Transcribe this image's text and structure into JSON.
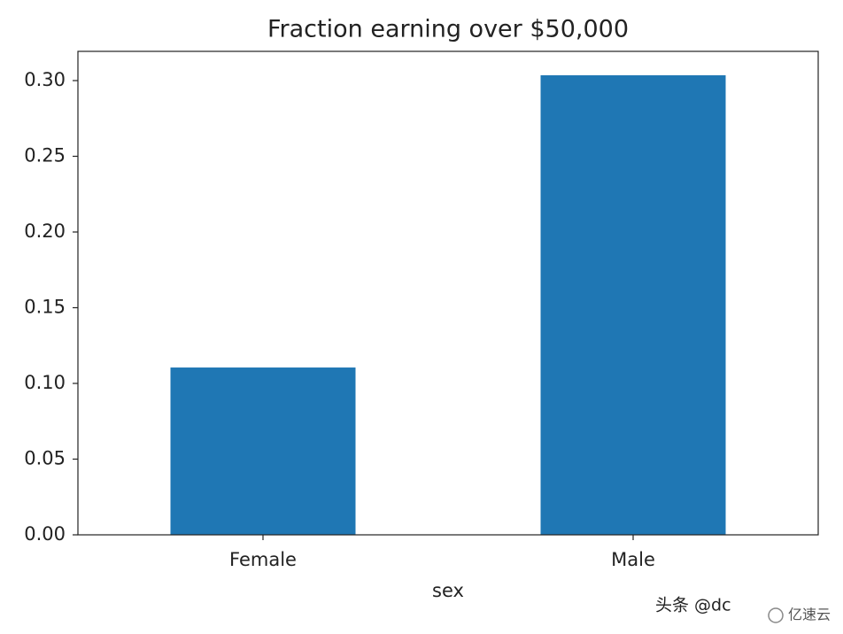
{
  "chart_data": {
    "type": "bar",
    "title": "Fraction earning over $50,000",
    "xlabel": "sex",
    "categories": [
      "Female",
      "Male"
    ],
    "values": [
      0.1105,
      0.3035
    ],
    "color": "#1f77b4",
    "ylim": [
      0,
      0.3193
    ],
    "yticks": [
      {
        "value": 0,
        "label": "0.00"
      },
      {
        "value": 0.05,
        "label": "0.05"
      },
      {
        "value": 0.1,
        "label": "0.10"
      },
      {
        "value": 0.15,
        "label": "0.15"
      },
      {
        "value": 0.2,
        "label": "0.20"
      },
      {
        "value": 0.25,
        "label": "0.25"
      },
      {
        "value": 0.3,
        "label": "0.30"
      }
    ],
    "grid": false
  },
  "watermark": {
    "author": "头条 @dc",
    "brand": "亿速云"
  }
}
